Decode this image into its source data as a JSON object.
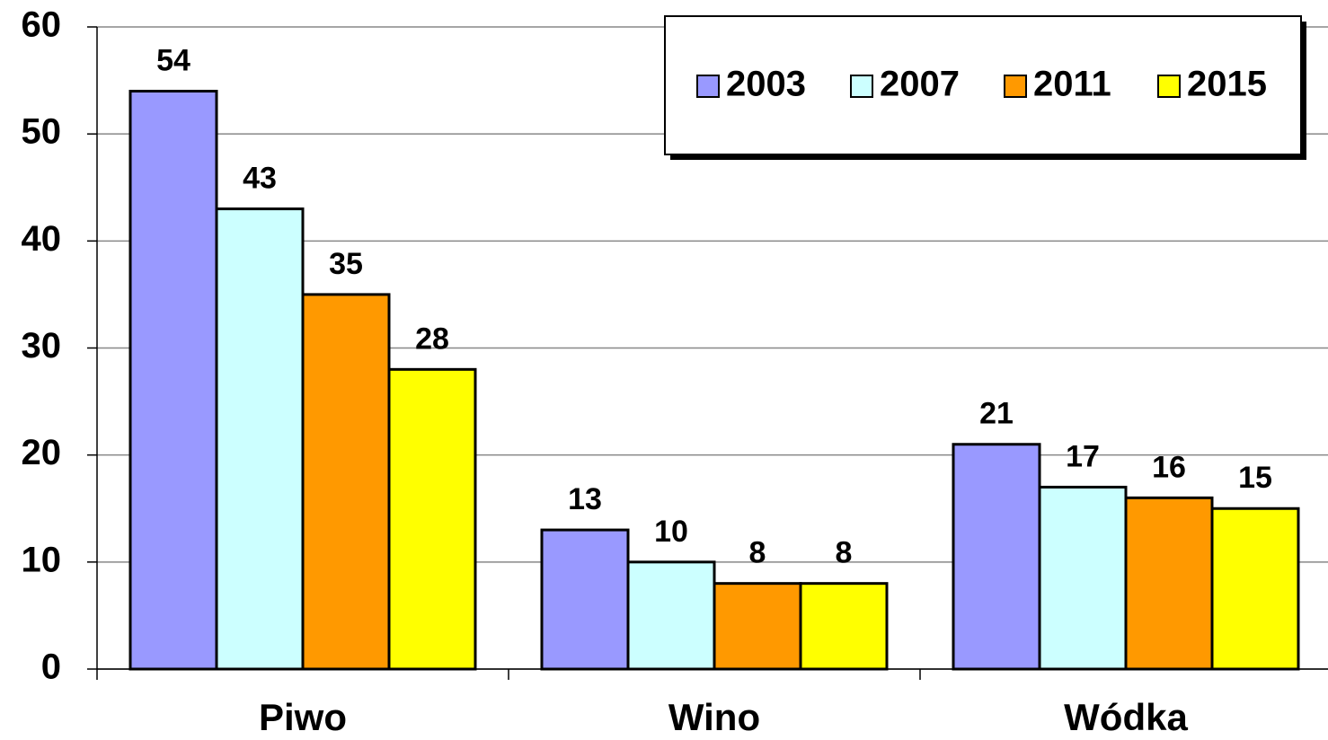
{
  "chart_data": {
    "type": "bar",
    "categories": [
      "Piwo",
      "Wino",
      "Wódka"
    ],
    "series": [
      {
        "name": "2003",
        "color": "#9999ff",
        "values": [
          54,
          13,
          21
        ]
      },
      {
        "name": "2007",
        "color": "#ccffff",
        "values": [
          43,
          10,
          17
        ]
      },
      {
        "name": "2011",
        "color": "#ff9900",
        "values": [
          35,
          8,
          16
        ]
      },
      {
        "name": "2015",
        "color": "#ffff00",
        "values": [
          28,
          8,
          15
        ]
      }
    ],
    "ylim": [
      0,
      60
    ],
    "yticks": [
      0,
      10,
      20,
      30,
      40,
      50,
      60
    ],
    "grid": true,
    "legend": "top-right"
  }
}
